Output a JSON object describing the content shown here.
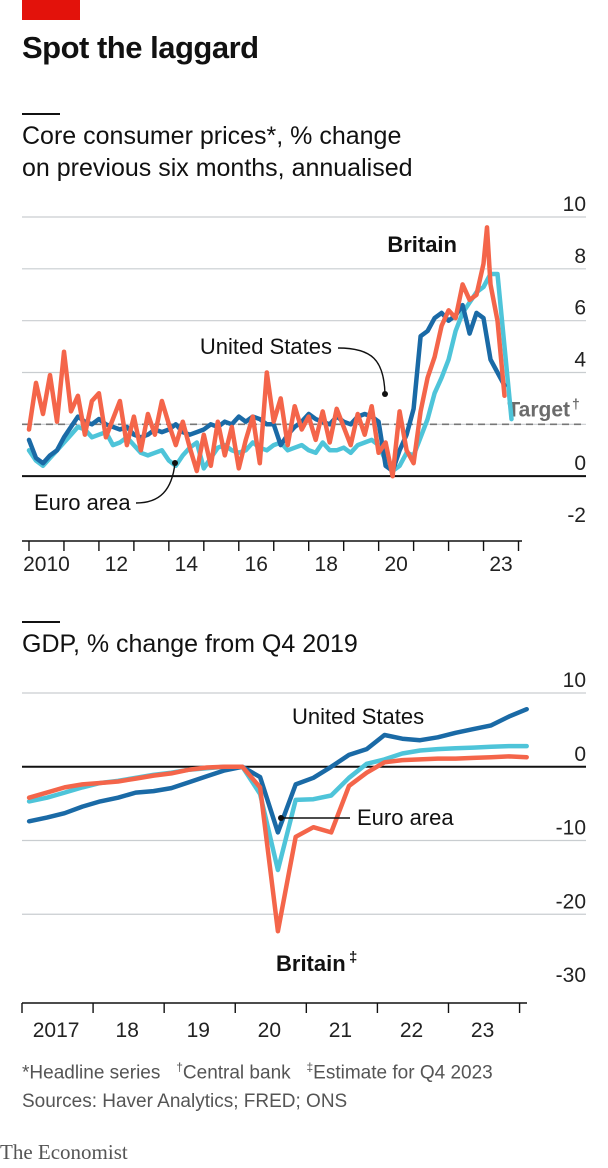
{
  "header": {
    "title": "Spot the laggard",
    "brand": "The Economist",
    "footnotes": {
      "f1_mark": "*",
      "f1_text": "Headline series",
      "f2_mark": "†",
      "f2_text": "Central bank",
      "f3_mark": "‡",
      "f3_text": "Estimate for Q4 2023",
      "sources": "Sources: Haver Analytics; FRED; ONS"
    }
  },
  "colors": {
    "britain": "#f4654a",
    "united_states": "#1a6aa6",
    "euro_area": "#4ec4d9",
    "brand_red": "#e3120b"
  },
  "chart_data": [
    {
      "type": "line",
      "subtitle_line1": "Core consumer prices*, % change",
      "subtitle_line2": "on previous six months, annualised",
      "xlim": [
        2009.8,
        2024.1
      ],
      "ylim": [
        -2,
        10
      ],
      "yticks": [
        -2,
        0,
        2,
        4,
        6,
        8,
        10
      ],
      "ytick_labels": [
        "-2",
        "0",
        "",
        "4",
        "6",
        "8",
        "10"
      ],
      "xticks": [
        2010,
        2012,
        2014,
        2016,
        2018,
        2020,
        2023
      ],
      "xtick_labels": [
        "2010",
        "12",
        "14",
        "16",
        "18",
        "20",
        "23"
      ],
      "target": {
        "value": 2,
        "label": "Target",
        "mark": "†"
      },
      "labels": {
        "britain": "Britain",
        "us": "United States",
        "ea": "Euro area"
      },
      "series": [
        {
          "name": "Euro area",
          "color": "#4ec4d9",
          "x": [
            2010.0,
            2010.2,
            2010.4,
            2010.6,
            2010.8,
            2011.0,
            2011.2,
            2011.4,
            2011.6,
            2011.8,
            2012.0,
            2012.2,
            2012.4,
            2012.6,
            2012.8,
            2013.0,
            2013.2,
            2013.4,
            2013.6,
            2013.8,
            2014.0,
            2014.2,
            2014.4,
            2014.6,
            2014.8,
            2015.0,
            2015.2,
            2015.4,
            2015.6,
            2015.8,
            2016.0,
            2016.2,
            2016.4,
            2016.6,
            2016.8,
            2017.0,
            2017.2,
            2017.4,
            2017.6,
            2017.8,
            2018.0,
            2018.2,
            2018.4,
            2018.6,
            2018.8,
            2019.0,
            2019.2,
            2019.4,
            2019.6,
            2019.8,
            2020.0,
            2020.2,
            2020.4,
            2020.6,
            2020.8,
            2021.0,
            2021.2,
            2021.4,
            2021.6,
            2021.8,
            2022.0,
            2022.2,
            2022.4,
            2022.6,
            2022.8,
            2023.0,
            2023.2,
            2023.4,
            2023.6,
            2023.8
          ],
          "y": [
            1.0,
            0.6,
            0.4,
            0.7,
            1.0,
            1.3,
            1.6,
            1.9,
            1.8,
            1.5,
            1.6,
            1.7,
            1.2,
            1.3,
            1.5,
            1.2,
            0.9,
            0.8,
            0.9,
            1.0,
            0.6,
            0.4,
            0.8,
            1.1,
            1.3,
            0.3,
            0.7,
            1.1,
            1.2,
            1.0,
            0.9,
            1.0,
            1.3,
            1.1,
            1.0,
            1.2,
            1.3,
            1.0,
            1.1,
            1.2,
            1.0,
            0.9,
            1.3,
            1.0,
            1.0,
            1.1,
            0.9,
            1.2,
            1.3,
            1.4,
            1.2,
            0.6,
            0.2,
            0.4,
            0.9,
            0.8,
            1.5,
            2.2,
            3.2,
            3.8,
            4.5,
            5.6,
            6.3,
            6.7,
            7.1,
            7.3,
            7.8,
            7.8,
            5.0,
            2.2
          ]
        },
        {
          "name": "United States",
          "color": "#1a6aa6",
          "x": [
            2010.0,
            2010.2,
            2010.4,
            2010.6,
            2010.8,
            2011.0,
            2011.2,
            2011.4,
            2011.6,
            2011.8,
            2012.0,
            2012.2,
            2012.4,
            2012.6,
            2012.8,
            2013.0,
            2013.2,
            2013.4,
            2013.6,
            2013.8,
            2014.0,
            2014.2,
            2014.4,
            2014.6,
            2014.8,
            2015.0,
            2015.2,
            2015.4,
            2015.6,
            2015.8,
            2016.0,
            2016.2,
            2016.4,
            2016.6,
            2016.8,
            2017.0,
            2017.2,
            2017.4,
            2017.6,
            2017.8,
            2018.0,
            2018.2,
            2018.4,
            2018.6,
            2018.8,
            2019.0,
            2019.2,
            2019.4,
            2019.6,
            2019.8,
            2020.0,
            2020.2,
            2020.4,
            2020.6,
            2020.8,
            2021.0,
            2021.2,
            2021.4,
            2021.6,
            2021.8,
            2022.0,
            2022.2,
            2022.4,
            2022.6,
            2022.8,
            2023.0,
            2023.2,
            2023.4,
            2023.6
          ],
          "y": [
            1.4,
            0.7,
            0.5,
            0.8,
            1.0,
            1.5,
            1.9,
            2.3,
            2.1,
            2.0,
            2.2,
            2.0,
            1.9,
            1.8,
            1.9,
            1.6,
            1.5,
            1.6,
            1.8,
            1.7,
            1.8,
            2.0,
            1.7,
            1.6,
            1.7,
            1.8,
            2.0,
            1.9,
            2.1,
            2.0,
            2.3,
            2.1,
            2.3,
            2.2,
            2.0,
            2.0,
            1.2,
            1.6,
            1.9,
            2.1,
            2.4,
            2.2,
            2.1,
            2.0,
            2.3,
            2.1,
            2.0,
            2.3,
            2.4,
            2.3,
            2.1,
            0.4,
            0.2,
            1.0,
            1.6,
            2.6,
            5.4,
            5.6,
            6.1,
            6.3,
            6.0,
            6.2,
            6.6,
            5.5,
            6.3,
            6.1,
            4.5,
            4.0,
            3.5
          ]
        },
        {
          "name": "Britain",
          "color": "#f4654a",
          "x": [
            2010.0,
            2010.2,
            2010.4,
            2010.6,
            2010.8,
            2011.0,
            2011.2,
            2011.4,
            2011.6,
            2011.8,
            2012.0,
            2012.2,
            2012.4,
            2012.6,
            2012.8,
            2013.0,
            2013.2,
            2013.4,
            2013.6,
            2013.8,
            2014.0,
            2014.2,
            2014.4,
            2014.6,
            2014.8,
            2015.0,
            2015.2,
            2015.4,
            2015.6,
            2015.8,
            2016.0,
            2016.2,
            2016.4,
            2016.6,
            2016.8,
            2017.0,
            2017.2,
            2017.4,
            2017.6,
            2017.8,
            2018.0,
            2018.2,
            2018.4,
            2018.6,
            2018.8,
            2019.0,
            2019.2,
            2019.4,
            2019.6,
            2019.8,
            2020.0,
            2020.2,
            2020.4,
            2020.6,
            2020.8,
            2021.0,
            2021.2,
            2021.4,
            2021.6,
            2021.8,
            2022.0,
            2022.2,
            2022.4,
            2022.6,
            2022.8,
            2023.0,
            2023.1,
            2023.2,
            2023.4,
            2023.6
          ],
          "y": [
            1.8,
            3.6,
            2.4,
            3.9,
            2.1,
            4.8,
            2.5,
            3.1,
            1.6,
            2.9,
            3.2,
            1.5,
            2.2,
            2.9,
            1.2,
            2.3,
            1.0,
            2.4,
            1.6,
            2.9,
            2.0,
            1.2,
            2.1,
            1.1,
            0.2,
            1.6,
            0.4,
            2.1,
            0.8,
            1.9,
            0.3,
            1.4,
            2.3,
            0.5,
            4.0,
            2.1,
            3.0,
            1.2,
            2.7,
            1.8,
            2.3,
            1.4,
            2.5,
            1.3,
            2.6,
            1.9,
            1.2,
            2.4,
            1.6,
            2.7,
            0.9,
            1.3,
            0.0,
            2.5,
            1.0,
            0.5,
            2.5,
            3.8,
            4.6,
            5.8,
            6.4,
            6.1,
            7.4,
            6.8,
            7.0,
            8.2,
            9.6,
            7.4,
            6.0,
            3.1
          ]
        }
      ]
    },
    {
      "type": "line",
      "subtitle": "GDP, % change from Q4 2019",
      "xlim": [
        2016.8,
        2024.2
      ],
      "ylim": [
        -30,
        10
      ],
      "yticks": [
        -30,
        -20,
        -10,
        0,
        10
      ],
      "ytick_labels": [
        "-30",
        "-20",
        "-10",
        "0",
        "10"
      ],
      "xticks": [
        2017,
        2018,
        2019,
        2020,
        2021,
        2022,
        2023
      ],
      "xtick_labels": [
        "2017",
        "18",
        "19",
        "20",
        "21",
        "22",
        "23"
      ],
      "labels": {
        "us": "United States",
        "ea": "Euro area",
        "britain": "Britain",
        "britain_mark": "‡"
      },
      "series": [
        {
          "name": "Euro area",
          "color": "#4ec4d9",
          "x": [
            2016.9,
            2017.15,
            2017.4,
            2017.65,
            2017.9,
            2018.15,
            2018.4,
            2018.65,
            2018.9,
            2019.15,
            2019.4,
            2019.65,
            2019.9,
            2020.15,
            2020.4,
            2020.65,
            2020.9,
            2021.15,
            2021.4,
            2021.65,
            2021.9,
            2022.15,
            2022.4,
            2022.65,
            2022.9,
            2023.15,
            2023.4,
            2023.65,
            2023.9
          ],
          "y": [
            -4.7,
            -4.2,
            -3.5,
            -2.8,
            -2.2,
            -1.9,
            -1.5,
            -1.1,
            -0.8,
            -0.4,
            -0.2,
            0.0,
            0.0,
            -3.7,
            -14.0,
            -4.5,
            -4.4,
            -3.9,
            -1.5,
            0.4,
            1.0,
            1.8,
            2.2,
            2.4,
            2.5,
            2.6,
            2.7,
            2.8,
            2.8
          ]
        },
        {
          "name": "United States",
          "color": "#1a6aa6",
          "x": [
            2016.9,
            2017.15,
            2017.4,
            2017.65,
            2017.9,
            2018.15,
            2018.4,
            2018.65,
            2018.9,
            2019.15,
            2019.4,
            2019.65,
            2019.9,
            2020.15,
            2020.4,
            2020.65,
            2020.9,
            2021.15,
            2021.4,
            2021.65,
            2021.9,
            2022.15,
            2022.4,
            2022.65,
            2022.9,
            2023.15,
            2023.4,
            2023.65,
            2023.9
          ],
          "y": [
            -7.4,
            -6.9,
            -6.3,
            -5.4,
            -4.7,
            -4.2,
            -3.5,
            -3.3,
            -2.9,
            -2.1,
            -1.3,
            -0.5,
            0.0,
            -1.4,
            -8.9,
            -2.4,
            -1.5,
            0.0,
            1.6,
            2.4,
            4.3,
            3.8,
            3.6,
            4.0,
            4.6,
            5.1,
            5.6,
            6.8,
            7.8
          ]
        },
        {
          "name": "Britain",
          "color": "#f4654a",
          "x": [
            2016.9,
            2017.15,
            2017.4,
            2017.65,
            2017.9,
            2018.15,
            2018.4,
            2018.65,
            2018.9,
            2019.15,
            2019.4,
            2019.65,
            2019.9,
            2020.15,
            2020.4,
            2020.65,
            2020.9,
            2021.15,
            2021.4,
            2021.65,
            2021.9,
            2022.15,
            2022.4,
            2022.65,
            2022.9,
            2023.15,
            2023.4,
            2023.65,
            2023.9
          ],
          "y": [
            -4.2,
            -3.5,
            -2.8,
            -2.4,
            -2.2,
            -2.0,
            -1.6,
            -1.2,
            -0.9,
            -0.4,
            -0.1,
            0.0,
            0.0,
            -2.8,
            -22.3,
            -9.5,
            -8.2,
            -8.9,
            -2.6,
            -0.8,
            0.6,
            0.9,
            1.0,
            1.1,
            1.1,
            1.2,
            1.3,
            1.4,
            1.3
          ]
        }
      ]
    }
  ]
}
